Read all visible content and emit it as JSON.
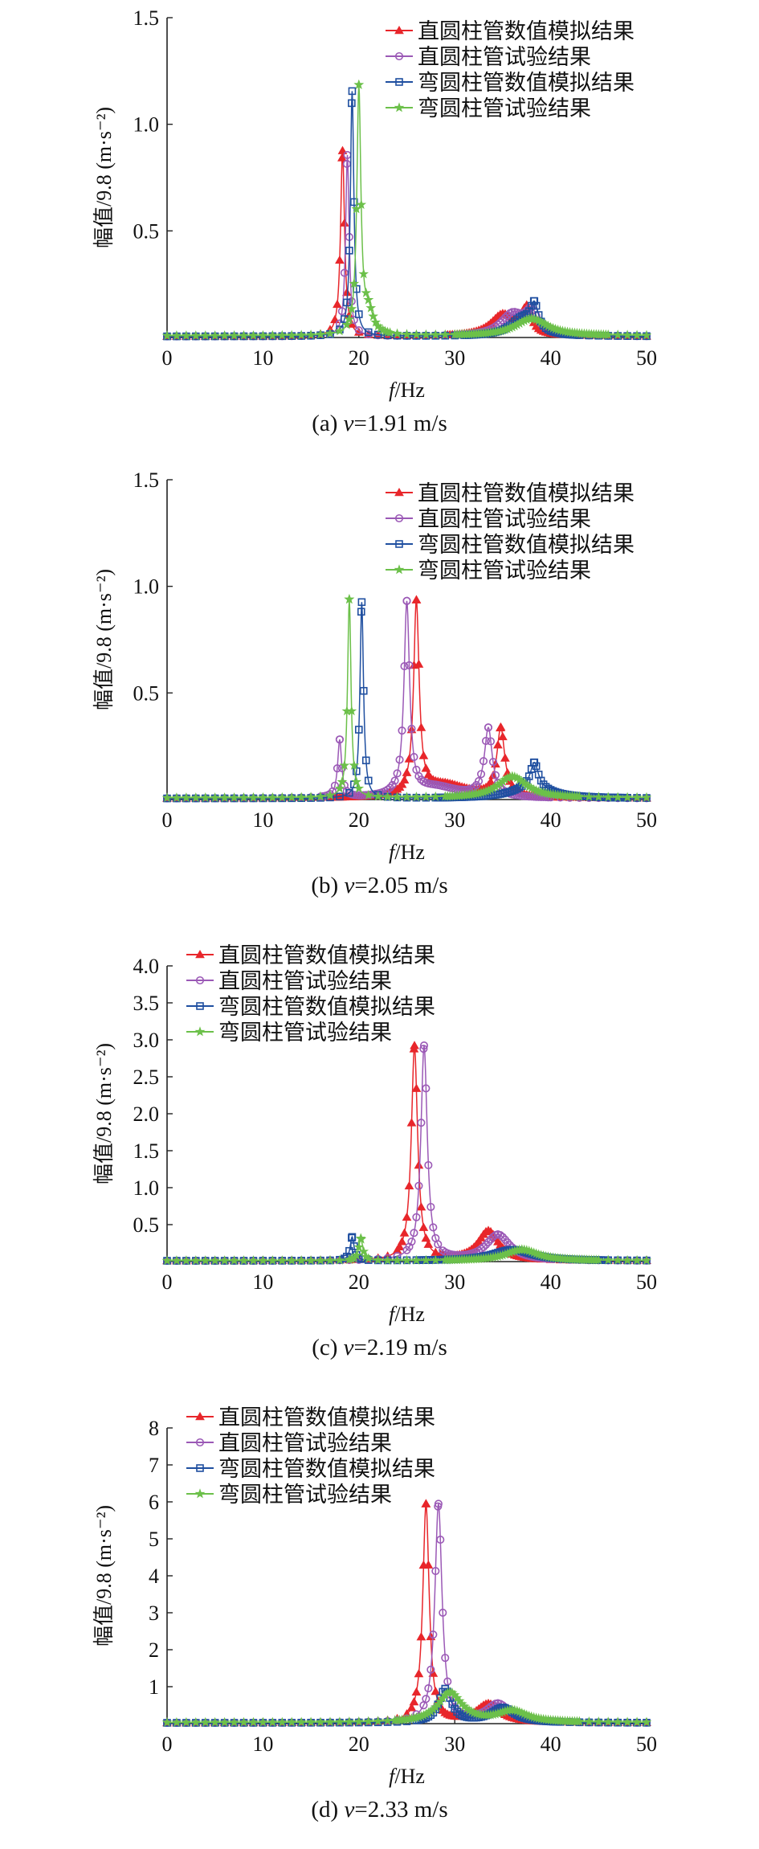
{
  "series_styles": [
    {
      "color": "#e8262b",
      "marker": "triangle"
    },
    {
      "color": "#9b59b6",
      "marker": "circle"
    },
    {
      "color": "#1f4fa0",
      "marker": "square"
    },
    {
      "color": "#6cc04a",
      "marker": "star"
    }
  ],
  "ylabel": "幅值/9.8 (m·s⁻²)",
  "xlabel_italic": "f",
  "xlabel_rest": "/Hz",
  "chart_data": [
    {
      "type": "line",
      "caption_prefix": "(a) ",
      "caption_var": "v",
      "caption_rest": "=1.91 m/s",
      "xlim": [
        0,
        50
      ],
      "ylim": [
        0,
        1.5
      ],
      "xticks": [
        0,
        10,
        20,
        30,
        40,
        50
      ],
      "yticks": [
        0.5,
        1.0,
        1.5
      ],
      "ytick_labels": [
        "0.5",
        "1.0",
        "1.5"
      ],
      "series": [
        {
          "name": "直圆柱管数值模拟结果",
          "peaks": [
            {
              "f": 18.3,
              "a": 0.87,
              "w": 0.25
            },
            {
              "f": 35.0,
              "a": 0.1,
              "w": 1.5
            },
            {
              "f": 37.5,
              "a": 0.12,
              "w": 0.6
            }
          ],
          "base": 0.005
        },
        {
          "name": "直圆柱管试验结果",
          "peaks": [
            {
              "f": 18.8,
              "a": 0.85,
              "w": 0.22
            },
            {
              "f": 36.0,
              "a": 0.1,
              "w": 1.5
            },
            {
              "f": 38.0,
              "a": 0.1,
              "w": 0.8
            }
          ],
          "base": 0.005
        },
        {
          "name": "弯圆柱管数值模拟结果",
          "peaks": [
            {
              "f": 19.3,
              "a": 1.15,
              "w": 0.22
            },
            {
              "f": 37.0,
              "a": 0.08,
              "w": 1.5
            },
            {
              "f": 38.3,
              "a": 0.12,
              "w": 0.5
            }
          ],
          "base": 0.005
        },
        {
          "name": "弯圆柱管试验结果",
          "peaks": [
            {
              "f": 20.0,
              "a": 1.15,
              "w": 0.25
            },
            {
              "f": 21.0,
              "a": 0.1,
              "w": 0.6
            },
            {
              "f": 38.0,
              "a": 0.08,
              "w": 2.0
            }
          ],
          "base": 0.008
        }
      ]
    },
    {
      "type": "line",
      "caption_prefix": "(b) ",
      "caption_var": "v",
      "caption_rest": "=2.05 m/s",
      "xlim": [
        0,
        50
      ],
      "ylim": [
        0,
        1.5
      ],
      "xticks": [
        0,
        10,
        20,
        30,
        40,
        50
      ],
      "yticks": [
        0.5,
        1.0,
        1.5
      ],
      "ytick_labels": [
        "0.5",
        "1.0",
        "1.5"
      ],
      "series": [
        {
          "name": "直圆柱管数值模拟结果",
          "peaks": [
            {
              "f": 26.0,
              "a": 0.9,
              "w": 0.35
            },
            {
              "f": 34.8,
              "a": 0.32,
              "w": 0.5
            },
            {
              "f": 29.0,
              "a": 0.06,
              "w": 3.0
            }
          ],
          "base": 0.005
        },
        {
          "name": "直圆柱管试验结果",
          "peaks": [
            {
              "f": 18.0,
              "a": 0.27,
              "w": 0.25
            },
            {
              "f": 25.0,
              "a": 0.9,
              "w": 0.35
            },
            {
              "f": 33.5,
              "a": 0.32,
              "w": 0.5
            },
            {
              "f": 28.0,
              "a": 0.05,
              "w": 3.0
            }
          ],
          "base": 0.005
        },
        {
          "name": "弯圆柱管数值模拟结果",
          "peaks": [
            {
              "f": 20.3,
              "a": 0.92,
              "w": 0.22
            },
            {
              "f": 38.3,
              "a": 0.12,
              "w": 0.5
            },
            {
              "f": 38.0,
              "a": 0.05,
              "w": 2.5
            }
          ],
          "base": 0.005
        },
        {
          "name": "弯圆柱管试验结果",
          "peaks": [
            {
              "f": 19.0,
              "a": 0.93,
              "w": 0.22
            },
            {
              "f": 36.0,
              "a": 0.1,
              "w": 1.8
            }
          ],
          "base": 0.008
        }
      ]
    },
    {
      "type": "line",
      "caption_prefix": "(c) ",
      "caption_var": "v",
      "caption_rest": "=2.19 m/s",
      "xlim": [
        0,
        50
      ],
      "ylim": [
        0,
        4.0
      ],
      "xticks": [
        0,
        10,
        20,
        30,
        40,
        50
      ],
      "yticks": [
        0.5,
        1.0,
        1.5,
        2.0,
        2.5,
        3.0,
        3.5,
        4.0
      ],
      "ytick_labels": [
        "0.5",
        "1.0",
        "1.5",
        "2.0",
        "2.5",
        "3.0",
        "3.5",
        "4.0"
      ],
      "series": [
        {
          "name": "直圆柱管数值模拟结果",
          "peaks": [
            {
              "f": 25.8,
              "a": 2.9,
              "w": 0.4
            },
            {
              "f": 33.5,
              "a": 0.4,
              "w": 1.3
            }
          ],
          "base": 0.01
        },
        {
          "name": "直圆柱管试验结果",
          "peaks": [
            {
              "f": 26.8,
              "a": 2.9,
              "w": 0.4
            },
            {
              "f": 34.5,
              "a": 0.35,
              "w": 1.5
            }
          ],
          "base": 0.01
        },
        {
          "name": "弯圆柱管数值模拟结果",
          "peaks": [
            {
              "f": 19.3,
              "a": 0.32,
              "w": 0.25
            },
            {
              "f": 36.0,
              "a": 0.15,
              "w": 2.5
            }
          ],
          "base": 0.01
        },
        {
          "name": "弯圆柱管试验结果",
          "peaks": [
            {
              "f": 20.2,
              "a": 0.3,
              "w": 0.25
            },
            {
              "f": 37.0,
              "a": 0.15,
              "w": 2.0
            }
          ],
          "base": 0.012
        }
      ]
    },
    {
      "type": "line",
      "caption_prefix": "(d) ",
      "caption_var": "v",
      "caption_rest": "=2.33 m/s",
      "xlim": [
        0,
        50
      ],
      "ylim": [
        0,
        8
      ],
      "xticks": [
        0,
        10,
        20,
        30,
        40,
        50
      ],
      "yticks": [
        1,
        2,
        3,
        4,
        5,
        6,
        7,
        8
      ],
      "ytick_labels": [
        "1",
        "2",
        "3",
        "4",
        "5",
        "6",
        "7",
        "8"
      ],
      "series": [
        {
          "name": "直圆柱管数值模拟结果",
          "peaks": [
            {
              "f": 27.0,
              "a": 5.9,
              "w": 0.4
            },
            {
              "f": 33.5,
              "a": 0.5,
              "w": 1.5
            }
          ],
          "base": 0.02
        },
        {
          "name": "直圆柱管试验结果",
          "peaks": [
            {
              "f": 28.3,
              "a": 5.9,
              "w": 0.45
            },
            {
              "f": 34.5,
              "a": 0.5,
              "w": 1.5
            }
          ],
          "base": 0.02
        },
        {
          "name": "弯圆柱管数值模拟结果",
          "peaks": [
            {
              "f": 29.0,
              "a": 0.9,
              "w": 0.8
            },
            {
              "f": 35.0,
              "a": 0.4,
              "w": 1.5
            }
          ],
          "base": 0.02
        },
        {
          "name": "弯圆柱管试验结果",
          "peaks": [
            {
              "f": 29.5,
              "a": 0.8,
              "w": 1.5
            },
            {
              "f": 36.0,
              "a": 0.3,
              "w": 1.8
            }
          ],
          "base": 0.03
        }
      ]
    }
  ]
}
